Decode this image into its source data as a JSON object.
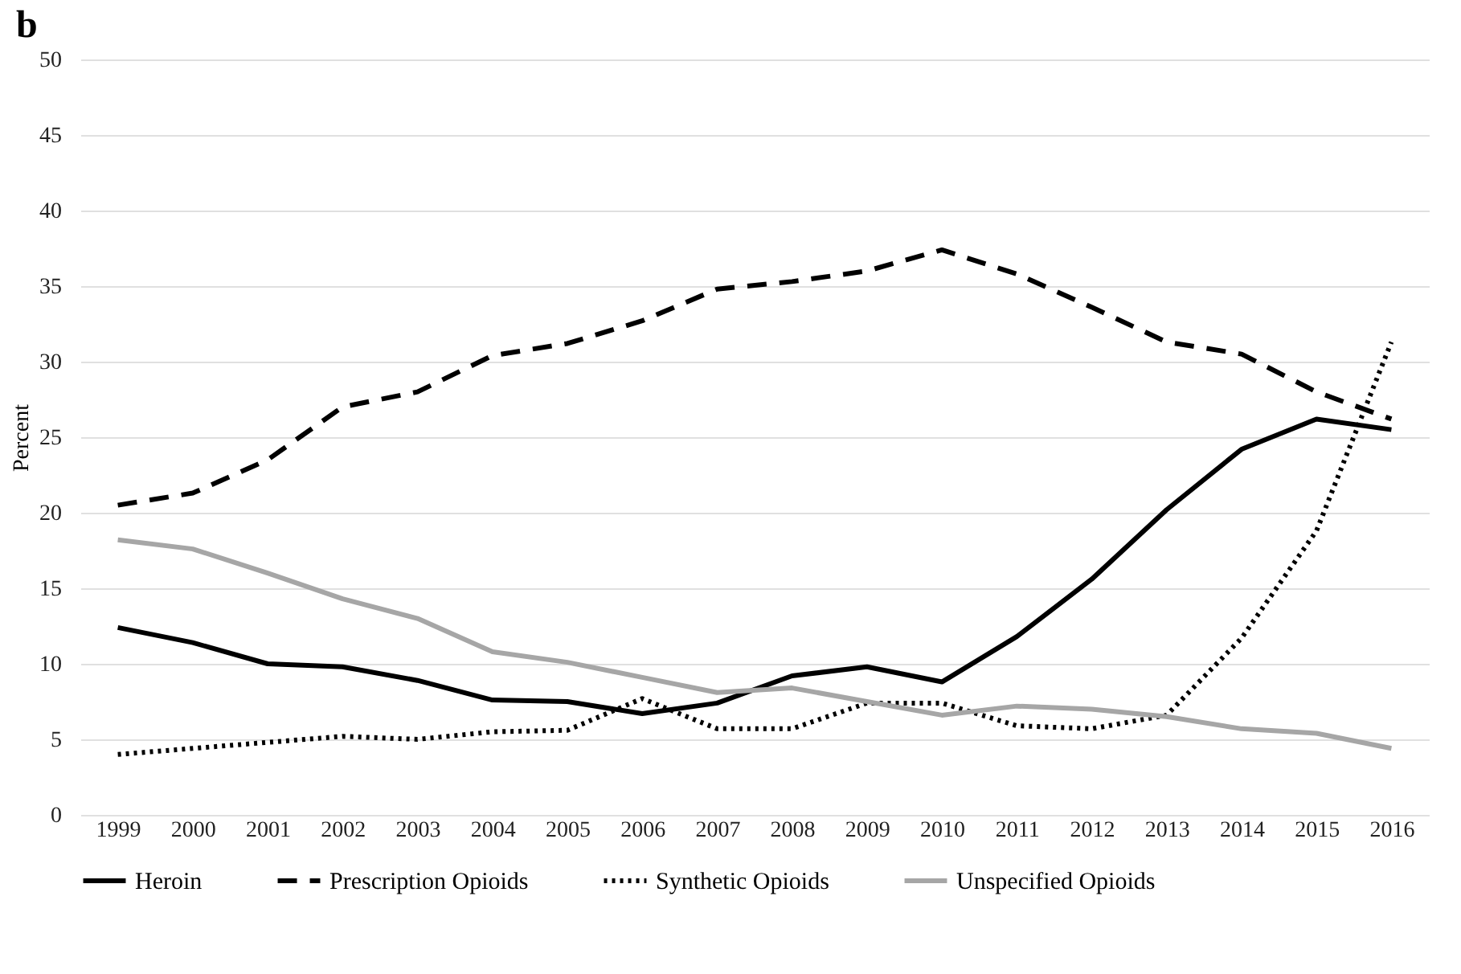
{
  "chart_data": {
    "type": "line",
    "title": "b",
    "ylabel": "Percent",
    "categories": [
      "1999",
      "2000",
      "2001",
      "2002",
      "2003",
      "2004",
      "2005",
      "2006",
      "2007",
      "2008",
      "2009",
      "2010",
      "2011",
      "2012",
      "2013",
      "2014",
      "2015",
      "2016"
    ],
    "series": [
      {
        "name": "Heroin",
        "color": "#000000",
        "line_style": "solid",
        "values": [
          12.4,
          11.4,
          10.0,
          9.8,
          8.9,
          7.6,
          7.5,
          6.7,
          7.4,
          9.2,
          9.8,
          8.8,
          11.8,
          15.6,
          20.2,
          24.2,
          26.2,
          25.5
        ]
      },
      {
        "name": "Prescription Opioids",
        "color": "#000000",
        "line_style": "dashed",
        "values": [
          20.5,
          21.3,
          23.5,
          27.0,
          28.0,
          30.4,
          31.2,
          32.7,
          34.8,
          35.3,
          36.0,
          37.4,
          35.8,
          33.6,
          31.3,
          30.5,
          28.0,
          26.2
        ]
      },
      {
        "name": "Synthetic Opioids",
        "color": "#000000",
        "line_style": "dotted",
        "values": [
          4.0,
          4.4,
          4.8,
          5.2,
          5.0,
          5.5,
          5.6,
          7.7,
          5.7,
          5.7,
          7.4,
          7.4,
          5.9,
          5.7,
          6.6,
          11.7,
          18.8,
          31.3
        ]
      },
      {
        "name": "Unspecified Opioids",
        "color": "#a6a6a6",
        "line_style": "solid",
        "values": [
          18.2,
          17.6,
          16.0,
          14.3,
          13.0,
          10.8,
          10.1,
          9.1,
          8.1,
          8.4,
          7.5,
          6.6,
          7.2,
          7.0,
          6.5,
          5.7,
          5.4,
          4.4
        ]
      }
    ],
    "ylim": [
      0,
      50
    ],
    "yticks": [
      0,
      5,
      10,
      15,
      20,
      25,
      30,
      35,
      40,
      45,
      50
    ],
    "grid": "y",
    "legend": "bottom",
    "marker": "none"
  }
}
